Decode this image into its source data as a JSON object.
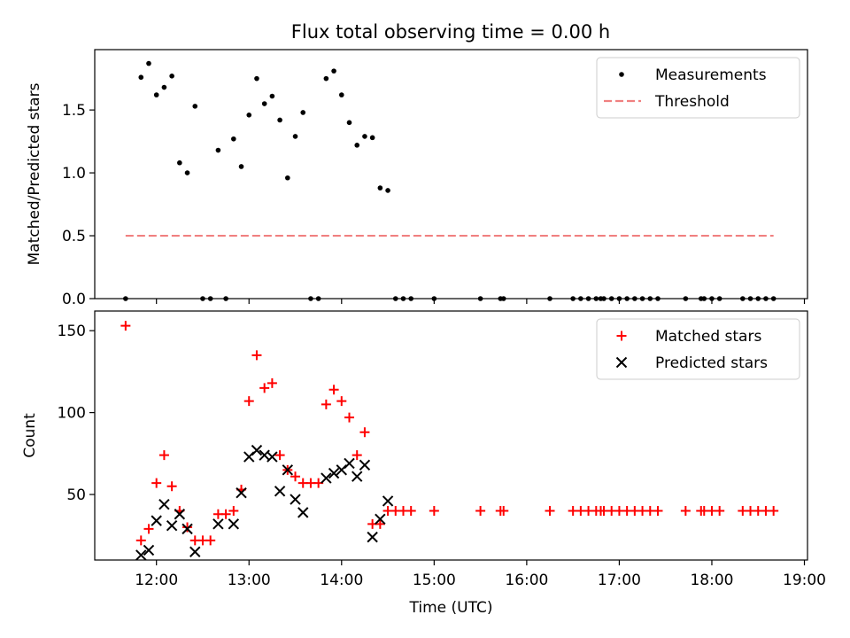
{
  "chart_data": [
    {
      "type": "scatter",
      "title": "Flux total observing time = 0.00 h",
      "xlabel": "",
      "ylabel": "Matched/Predicted stars",
      "ylim": [
        0,
        1.98
      ],
      "xlim": [
        "11:20",
        "19:02"
      ],
      "y_ticks": [
        "0.0",
        "0.5",
        "1.0",
        "1.5"
      ],
      "y_tick_values": [
        0,
        0.5,
        1.0,
        1.5
      ],
      "legend_position": "top-right",
      "grid": false,
      "series": [
        {
          "name": "Measurements",
          "marker": "dot",
          "color": "#000000",
          "points": [
            [
              "11:40",
              0
            ],
            [
              "11:50",
              1.76
            ],
            [
              "11:55",
              1.87
            ],
            [
              "12:00",
              1.62
            ],
            [
              "12:05",
              1.68
            ],
            [
              "12:10",
              1.77
            ],
            [
              "12:15",
              1.08
            ],
            [
              "12:20",
              1.0
            ],
            [
              "12:25",
              1.53
            ],
            [
              "12:30",
              0
            ],
            [
              "12:35",
              0
            ],
            [
              "12:40",
              1.18
            ],
            [
              "12:45",
              0
            ],
            [
              "12:50",
              1.27
            ],
            [
              "12:55",
              1.05
            ],
            [
              "13:00",
              1.46
            ],
            [
              "13:05",
              1.75
            ],
            [
              "13:10",
              1.55
            ],
            [
              "13:15",
              1.61
            ],
            [
              "13:20",
              1.42
            ],
            [
              "13:25",
              0.96
            ],
            [
              "13:30",
              1.29
            ],
            [
              "13:35",
              1.48
            ],
            [
              "13:40",
              0
            ],
            [
              "13:45",
              0
            ],
            [
              "13:50",
              1.75
            ],
            [
              "13:55",
              1.81
            ],
            [
              "14:00",
              1.62
            ],
            [
              "14:05",
              1.4
            ],
            [
              "14:10",
              1.22
            ],
            [
              "14:15",
              1.29
            ],
            [
              "14:20",
              1.28
            ],
            [
              "14:25",
              0.88
            ],
            [
              "14:30",
              0.86
            ],
            [
              "14:35",
              0
            ],
            [
              "14:40",
              0
            ],
            [
              "14:45",
              0
            ],
            [
              "15:00",
              0
            ],
            [
              "15:30",
              0
            ],
            [
              "15:43",
              0
            ],
            [
              "15:45",
              0
            ],
            [
              "16:15",
              0
            ],
            [
              "16:30",
              0
            ],
            [
              "16:35",
              0
            ],
            [
              "16:40",
              0
            ],
            [
              "16:45",
              0
            ],
            [
              "16:48",
              0
            ],
            [
              "16:50",
              0
            ],
            [
              "16:55",
              0
            ],
            [
              "17:00",
              0
            ],
            [
              "17:05",
              0
            ],
            [
              "17:10",
              0
            ],
            [
              "17:15",
              0
            ],
            [
              "17:20",
              0
            ],
            [
              "17:25",
              0
            ],
            [
              "17:43",
              0
            ],
            [
              "17:53",
              0
            ],
            [
              "17:55",
              0
            ],
            [
              "18:00",
              0
            ],
            [
              "18:05",
              0
            ],
            [
              "18:20",
              0
            ],
            [
              "18:25",
              0
            ],
            [
              "18:30",
              0
            ],
            [
              "18:35",
              0
            ],
            [
              "18:40",
              0
            ]
          ]
        },
        {
          "name": "Threshold",
          "marker": "dashed-line",
          "color": "#f08080",
          "points": [
            [
              "11:40",
              0.5
            ],
            [
              "18:40",
              0.5
            ]
          ]
        }
      ]
    },
    {
      "type": "scatter",
      "title": "",
      "xlabel": "Time (UTC)",
      "ylabel": "Count",
      "ylim": [
        10,
        162
      ],
      "xlim": [
        "11:20",
        "19:02"
      ],
      "y_ticks": [
        "50",
        "100",
        "150"
      ],
      "y_tick_values": [
        50,
        100,
        150
      ],
      "x_ticks": [
        "12:00",
        "13:00",
        "14:00",
        "15:00",
        "16:00",
        "17:00",
        "18:00",
        "19:00"
      ],
      "legend_position": "top-right",
      "grid": false,
      "series": [
        {
          "name": "Matched stars",
          "marker": "plus",
          "color": "#ff0000",
          "points": [
            [
              "11:40",
              153
            ],
            [
              "11:50",
              22
            ],
            [
              "11:55",
              29
            ],
            [
              "12:00",
              57
            ],
            [
              "12:05",
              74
            ],
            [
              "12:10",
              55
            ],
            [
              "12:15",
              40
            ],
            [
              "12:20",
              30
            ],
            [
              "12:25",
              22
            ],
            [
              "12:30",
              22
            ],
            [
              "12:35",
              22
            ],
            [
              "12:40",
              38
            ],
            [
              "12:45",
              38
            ],
            [
              "12:50",
              40
            ],
            [
              "12:55",
              53
            ],
            [
              "13:00",
              107
            ],
            [
              "13:05",
              135
            ],
            [
              "13:10",
              115
            ],
            [
              "13:15",
              118
            ],
            [
              "13:20",
              74
            ],
            [
              "13:25",
              65
            ],
            [
              "13:30",
              61
            ],
            [
              "13:35",
              57
            ],
            [
              "13:40",
              57
            ],
            [
              "13:45",
              57
            ],
            [
              "13:50",
              105
            ],
            [
              "13:55",
              114
            ],
            [
              "14:00",
              107
            ],
            [
              "14:05",
              97
            ],
            [
              "14:10",
              74
            ],
            [
              "14:15",
              88
            ],
            [
              "14:20",
              32
            ],
            [
              "14:25",
              32
            ],
            [
              "14:30",
              40
            ],
            [
              "14:35",
              40
            ],
            [
              "14:40",
              40
            ],
            [
              "14:45",
              40
            ],
            [
              "15:00",
              40
            ],
            [
              "15:30",
              40
            ],
            [
              "15:43",
              40
            ],
            [
              "15:45",
              40
            ],
            [
              "16:15",
              40
            ],
            [
              "16:30",
              40
            ],
            [
              "16:35",
              40
            ],
            [
              "16:40",
              40
            ],
            [
              "16:45",
              40
            ],
            [
              "16:48",
              40
            ],
            [
              "16:50",
              40
            ],
            [
              "16:55",
              40
            ],
            [
              "17:00",
              40
            ],
            [
              "17:05",
              40
            ],
            [
              "17:10",
              40
            ],
            [
              "17:15",
              40
            ],
            [
              "17:20",
              40
            ],
            [
              "17:25",
              40
            ],
            [
              "17:43",
              40
            ],
            [
              "17:53",
              40
            ],
            [
              "17:55",
              40
            ],
            [
              "18:00",
              40
            ],
            [
              "18:05",
              40
            ],
            [
              "18:20",
              40
            ],
            [
              "18:25",
              40
            ],
            [
              "18:30",
              40
            ],
            [
              "18:35",
              40
            ],
            [
              "18:40",
              40
            ]
          ]
        },
        {
          "name": "Predicted stars",
          "marker": "x",
          "color": "#000000",
          "points": [
            [
              "11:50",
              13
            ],
            [
              "11:55",
              16
            ],
            [
              "12:00",
              34
            ],
            [
              "12:05",
              44
            ],
            [
              "12:10",
              31
            ],
            [
              "12:15",
              38
            ],
            [
              "12:20",
              29
            ],
            [
              "12:25",
              15
            ],
            [
              "12:40",
              32
            ],
            [
              "12:50",
              32
            ],
            [
              "12:55",
              51
            ],
            [
              "13:00",
              73
            ],
            [
              "13:05",
              77
            ],
            [
              "13:10",
              74
            ],
            [
              "13:15",
              73
            ],
            [
              "13:20",
              52
            ],
            [
              "13:25",
              65
            ],
            [
              "13:30",
              47
            ],
            [
              "13:35",
              39
            ],
            [
              "13:50",
              60
            ],
            [
              "13:55",
              63
            ],
            [
              "14:00",
              65
            ],
            [
              "14:05",
              69
            ],
            [
              "14:10",
              61
            ],
            [
              "14:15",
              68
            ],
            [
              "14:20",
              24
            ],
            [
              "14:25",
              35
            ],
            [
              "14:30",
              46
            ]
          ]
        }
      ]
    }
  ]
}
